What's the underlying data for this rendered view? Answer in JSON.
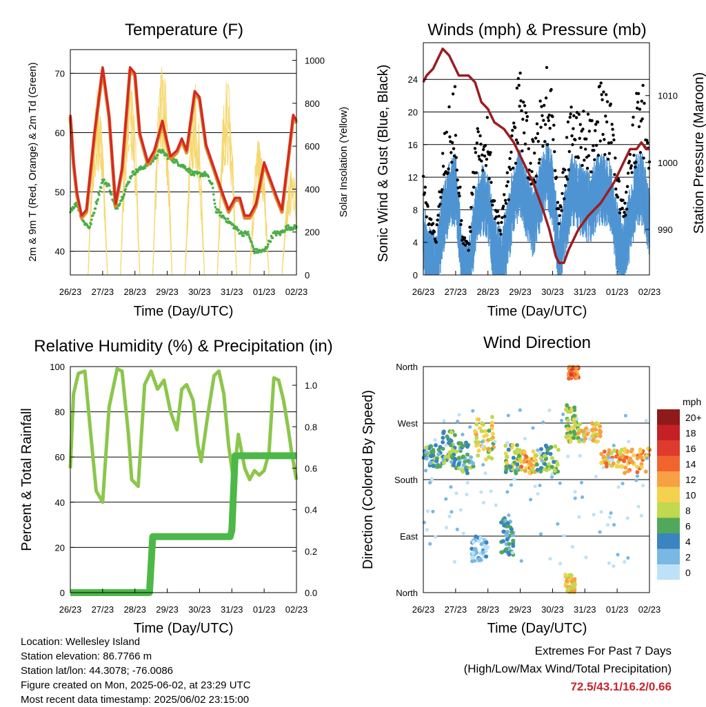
{
  "colors": {
    "temp_2m": "#e08a2a",
    "temp_9m": "#d42a24",
    "dewpoint": "#4aae48",
    "solar": "#f5d76e",
    "wind": "#4f94d2",
    "gust": "#000000",
    "pressure": "#9b1c20",
    "rh": "#8cc64b",
    "precip": "#4db848",
    "extremes_text": "#c8242b"
  },
  "time_ticks": [
    "26/23",
    "27/23",
    "28/23",
    "29/23",
    "30/23",
    "31/23",
    "01/23",
    "02/23"
  ],
  "chart_data": [
    {
      "id": "temperature",
      "type": "line",
      "title": "Temperature (F)",
      "xlabel": "Time (Day/UTC)",
      "ylabel": "2m & 9m T (Red, Orange) & 2m Td (Green)",
      "y2label": "Solar Insolation (Yellow)",
      "xlim": [
        0,
        7
      ],
      "ylim": [
        36,
        74
      ],
      "y2lim": [
        0,
        1050
      ],
      "yticks": [
        40,
        50,
        60,
        70
      ],
      "y2ticks": [
        0,
        200,
        400,
        600,
        800,
        1000
      ],
      "grid_y": true,
      "series": [
        {
          "key": "temp",
          "x": [
            0,
            0.1,
            0.2,
            0.35,
            0.5,
            0.75,
            1.0,
            1.2,
            1.4,
            1.6,
            1.85,
            2.0,
            2.15,
            2.4,
            2.6,
            2.85,
            3.1,
            3.3,
            3.45,
            3.6,
            3.85,
            4.0,
            4.2,
            4.45,
            4.7,
            4.9,
            5.1,
            5.25,
            5.4,
            5.55,
            5.75,
            6.0,
            6.2,
            6.4,
            6.55,
            6.75,
            6.9,
            7.0
          ],
          "y": [
            63,
            55,
            50,
            46,
            47,
            60,
            71,
            63,
            48,
            54,
            71,
            70,
            60,
            55,
            57,
            62,
            56,
            57,
            59,
            57,
            67,
            66,
            58,
            54,
            50,
            47,
            49,
            49,
            46,
            46,
            48,
            55,
            52,
            49,
            47,
            56,
            63,
            62
          ]
        },
        {
          "key": "dewpoint",
          "x": [
            0,
            0.2,
            0.4,
            0.6,
            0.8,
            1.0,
            1.2,
            1.4,
            1.6,
            1.9,
            2.2,
            2.5,
            2.8,
            3.0,
            3.3,
            3.6,
            3.8,
            4.0,
            4.2,
            4.4,
            4.5,
            4.7,
            4.9,
            5.1,
            5.3,
            5.5,
            5.7,
            6.0,
            6.3,
            6.5,
            6.7,
            6.9,
            7.0
          ],
          "y": [
            47,
            48,
            45,
            44,
            48,
            52,
            51,
            47,
            49,
            53,
            54,
            55,
            57,
            56,
            55,
            54,
            53,
            53,
            53,
            51,
            47,
            46,
            45,
            44,
            43,
            43,
            40,
            40,
            43,
            43,
            44,
            44,
            44
          ]
        }
      ]
    },
    {
      "id": "winds",
      "type": "scatter",
      "title": "Winds (mph) & Pressure (mb)",
      "xlabel": "Time (Day/UTC)",
      "ylabel": "Sonic Wind & Gust (Blue, Black)",
      "y2label": "Station Pressure (Maroon)",
      "xlim": [
        0,
        7
      ],
      "ylim": [
        0,
        28.5
      ],
      "y2lim": [
        983.2,
        1017.9
      ],
      "yticks": [
        0,
        4,
        8,
        12,
        16,
        20,
        24
      ],
      "y2ticks": [
        990,
        1000,
        1010
      ],
      "grid_y": true,
      "pressure": {
        "x": [
          0,
          0.1,
          0.3,
          0.5,
          0.6,
          0.8,
          1.1,
          1.4,
          1.6,
          1.8,
          2.0,
          2.2,
          2.5,
          2.8,
          3.1,
          3.4,
          3.7,
          3.9,
          4.1,
          4.2,
          4.35,
          4.5,
          4.8,
          5.1,
          5.5,
          5.9,
          6.2,
          6.4,
          6.6,
          6.75,
          6.9,
          7.0
        ],
        "y": [
          1012,
          1013,
          1014,
          1016,
          1017,
          1016,
          1013,
          1013,
          1012,
          1009,
          1008,
          1006,
          1005,
          1003,
          1000,
          997,
          993,
          990,
          986,
          985,
          985,
          987,
          990,
          992,
          994,
          997,
          1000,
          1002,
          1002,
          1003,
          1002,
          1002
        ]
      },
      "wind_envelope": {
        "x": [
          0,
          0.2,
          0.4,
          0.6,
          0.8,
          1.0,
          1.2,
          1.4,
          1.6,
          1.8,
          2.0,
          2.2,
          2.4,
          2.6,
          2.8,
          3.0,
          3.2,
          3.4,
          3.6,
          3.8,
          4.0,
          4.2,
          4.4,
          4.6,
          4.8,
          5.0,
          5.2,
          5.4,
          5.6,
          5.8,
          6.0,
          6.2,
          6.4,
          6.6,
          6.8,
          7.0
        ],
        "y": [
          6,
          3,
          2,
          8,
          11,
          12,
          2,
          1,
          8,
          11,
          10,
          4,
          3,
          6,
          11,
          13,
          10,
          8,
          11,
          14,
          12,
          3,
          8,
          12,
          11,
          10,
          10,
          12,
          12,
          11,
          6,
          4,
          8,
          12,
          12,
          8
        ]
      }
    },
    {
      "id": "humidity",
      "type": "line",
      "title": "Relative Humidity (%) & Precipitation (in)",
      "xlabel": "Time (Day/UTC)",
      "ylabel": "Percent & Total Rainfall",
      "xlim": [
        0,
        7
      ],
      "ylim": [
        0,
        100
      ],
      "y2lim": [
        0,
        1.09
      ],
      "yticks": [
        0,
        20,
        40,
        60,
        80,
        100
      ],
      "y2ticks": [
        0.0,
        0.2,
        0.4,
        0.6,
        0.8,
        1.0
      ],
      "grid_y": true,
      "series": [
        {
          "key": "rh",
          "x": [
            0,
            0.1,
            0.25,
            0.45,
            0.6,
            0.8,
            1.0,
            1.2,
            1.45,
            1.6,
            1.8,
            1.9,
            2.1,
            2.3,
            2.5,
            2.7,
            2.9,
            3.1,
            3.3,
            3.45,
            3.6,
            3.8,
            3.95,
            4.05,
            4.25,
            4.45,
            4.6,
            4.75,
            4.9,
            5.05,
            5.2,
            5.4,
            5.55,
            5.7,
            5.85,
            6.0,
            6.15,
            6.3,
            6.45,
            6.6,
            6.75,
            6.85,
            7.0
          ],
          "y": [
            55,
            88,
            97,
            98,
            75,
            45,
            40,
            82,
            99,
            98,
            70,
            50,
            47,
            92,
            98,
            90,
            94,
            80,
            72,
            90,
            92,
            85,
            65,
            58,
            78,
            96,
            98,
            88,
            65,
            50,
            70,
            55,
            50,
            54,
            52,
            54,
            62,
            95,
            94,
            85,
            72,
            62,
            50
          ]
        },
        {
          "key": "precip",
          "x": [
            0,
            2.45,
            2.55,
            4.95,
            5.0,
            5.1,
            7.0
          ],
          "y": [
            0.0,
            0.0,
            0.27,
            0.27,
            0.3,
            0.66,
            0.66
          ]
        }
      ]
    },
    {
      "id": "direction",
      "type": "scatter",
      "title": "Wind Direction",
      "xlabel": "Time (Day/UTC)",
      "ylabel": "Direction (Colored By Speed)",
      "xlim": [
        0,
        7
      ],
      "ylim": [
        0,
        360
      ],
      "yticks": [
        0,
        90,
        180,
        270,
        360
      ],
      "ytick_labels": [
        "North",
        "East",
        "South",
        "West",
        "North"
      ],
      "grid_y": true,
      "legend": {
        "title": "mph",
        "labels": [
          "20+",
          "18",
          "16",
          "14",
          "12",
          "10",
          "8",
          "6",
          "4",
          "2",
          "0"
        ],
        "colors": [
          "#8f1a1a",
          "#c42026",
          "#df3a2b",
          "#f0642e",
          "#f7a044",
          "#f5d14e",
          "#c0d94f",
          "#50a85a",
          "#3a84c0",
          "#7ab8e4",
          "#bde2f7"
        ],
        "placement": "right"
      },
      "clusters": [
        {
          "x": [
            0,
            0.6
          ],
          "y": [
            200,
            235
          ],
          "speed": 5
        },
        {
          "x": [
            0.6,
            1.0
          ],
          "y": [
            200,
            260
          ],
          "speed": 6
        },
        {
          "x": [
            1.0,
            1.6
          ],
          "y": [
            190,
            240
          ],
          "speed": 5
        },
        {
          "x": [
            1.6,
            2.2
          ],
          "y": [
            210,
            280
          ],
          "speed": 9
        },
        {
          "x": [
            2.5,
            3.0
          ],
          "y": [
            190,
            235
          ],
          "speed": 7
        },
        {
          "x": [
            3.0,
            3.5
          ],
          "y": [
            190,
            225
          ],
          "speed": 11
        },
        {
          "x": [
            3.5,
            4.2
          ],
          "y": [
            190,
            235
          ],
          "speed": 6
        },
        {
          "x": [
            4.4,
            4.8
          ],
          "y": [
            240,
            300
          ],
          "speed": 8
        },
        {
          "x": [
            4.8,
            5.5
          ],
          "y": [
            240,
            270
          ],
          "speed": 10
        },
        {
          "x": [
            5.5,
            6.2
          ],
          "y": [
            200,
            230
          ],
          "speed": 11
        },
        {
          "x": [
            6.2,
            7.0
          ],
          "y": [
            190,
            230
          ],
          "speed": 12
        },
        {
          "x": [
            1.5,
            2.0
          ],
          "y": [
            50,
            90
          ],
          "speed": 2
        },
        {
          "x": [
            2.4,
            2.8
          ],
          "y": [
            60,
            120
          ],
          "speed": 4
        },
        {
          "x": [
            4.4,
            4.7
          ],
          "y": [
            0,
            30
          ],
          "speed": 10
        },
        {
          "x": [
            4.5,
            4.8
          ],
          "y": [
            340,
            360
          ],
          "speed": 13
        }
      ]
    }
  ],
  "info": {
    "location": "Location: Wellesley Island",
    "elevation": "Station elevation: 86.7766 m",
    "latlon": "Station lat/lon: 44.3078; -76.0086",
    "created": "Figure created on Mon, 2025-06-02, at 23:29 UTC",
    "timestamp": "Most recent data timestamp: 2025/06/02 23:15:00"
  },
  "extremes": {
    "title": "Extremes For Past 7 Days",
    "subtitle": "(High/Low/Max Wind/Total Precipitation)",
    "values": "72.5/43.1/16.2/0.66"
  }
}
